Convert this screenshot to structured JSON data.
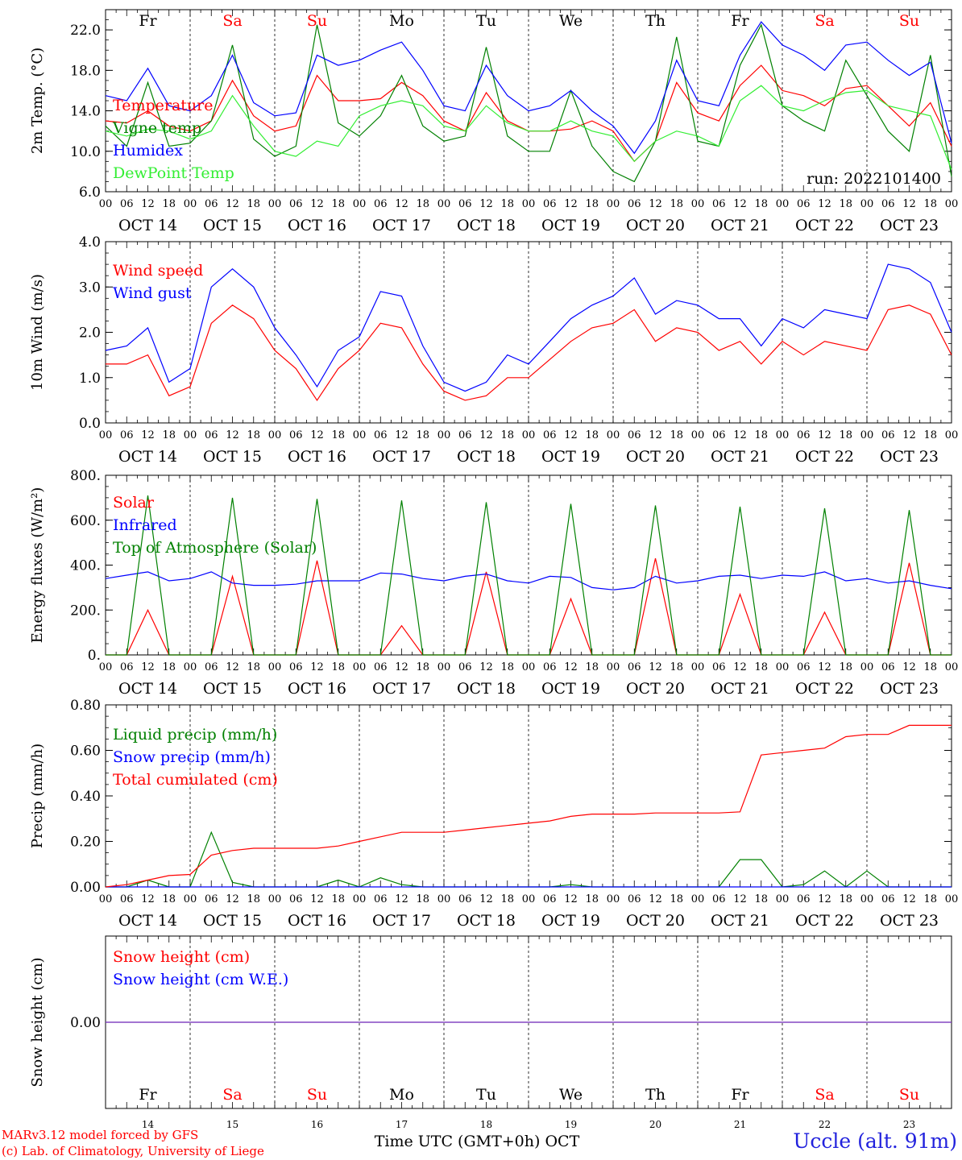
{
  "run_label": "run: 2022101400",
  "footer": {
    "model": "MARv3.12 model forced by GFS",
    "credit": "(c) Lab. of Climatology, University of Liege",
    "station": "Uccle (alt. 91m)",
    "xlabel": "Time UTC (GMT+0h)",
    "month": "OCT"
  },
  "days": [
    {
      "abbr": "Fr",
      "date": "OCT 14",
      "num": "14",
      "weekend": false
    },
    {
      "abbr": "Sa",
      "date": "OCT 15",
      "num": "15",
      "weekend": true
    },
    {
      "abbr": "Su",
      "date": "OCT 16",
      "num": "16",
      "weekend": true
    },
    {
      "abbr": "Mo",
      "date": "OCT 17",
      "num": "17",
      "weekend": false
    },
    {
      "abbr": "Tu",
      "date": "OCT 18",
      "num": "18",
      "weekend": false
    },
    {
      "abbr": "We",
      "date": "OCT 19",
      "num": "19",
      "weekend": false
    },
    {
      "abbr": "Th",
      "date": "OCT 20",
      "num": "20",
      "weekend": false
    },
    {
      "abbr": "Fr",
      "date": "OCT 21",
      "num": "21",
      "weekend": false
    },
    {
      "abbr": "Sa",
      "date": "OCT 22",
      "num": "22",
      "weekend": true
    },
    {
      "abbr": "Su",
      "date": "OCT 23",
      "num": "23",
      "weekend": true
    }
  ],
  "hour_ticks": [
    "00",
    "06",
    "12",
    "18"
  ],
  "colors": {
    "red": "#ff0000",
    "green": "#008000",
    "blue": "#0000ff",
    "lightgreen": "#33ee33",
    "purple": "#7f3fbf",
    "weekend": "#ff0000",
    "weekday": "#000000"
  },
  "chart_data": [
    {
      "id": "temp",
      "type": "line",
      "ylabel": "2m Temp. (°C)",
      "ylim": [
        6,
        24
      ],
      "yticks": [
        "6.0",
        "10.0",
        "14.0",
        "18.0",
        "22.0"
      ],
      "ytick_values": [
        6,
        10,
        14,
        18,
        22
      ],
      "x": [
        0,
        6,
        12,
        18,
        24,
        30,
        36,
        42,
        48,
        54,
        60,
        66,
        72,
        78,
        84,
        90,
        96,
        102,
        108,
        114,
        120,
        126,
        132,
        138,
        144,
        150,
        156,
        162,
        168,
        174,
        180,
        186,
        192,
        198,
        204,
        210,
        216,
        222,
        228,
        234,
        240
      ],
      "series": [
        {
          "name": "Temperature",
          "color": "red",
          "values": [
            13,
            12.8,
            14,
            12.5,
            12,
            13,
            17,
            13.5,
            12,
            12.5,
            17.5,
            15,
            15,
            15.2,
            16.8,
            15.5,
            13,
            12,
            15.8,
            13,
            12,
            12,
            12.2,
            13,
            12,
            9,
            11,
            16.8,
            13.8,
            13,
            16.5,
            18.5,
            16,
            15.5,
            14.5,
            16.2,
            16.5,
            14.5,
            12.5,
            14.8,
            10.5
          ]
        },
        {
          "name": "Vigne temp",
          "color": "green",
          "values": [
            12.5,
            10.5,
            16.8,
            10.5,
            10.8,
            13,
            20.5,
            11.2,
            9.5,
            10.5,
            22.5,
            12.8,
            11.5,
            13.5,
            17.5,
            12.5,
            11,
            11.5,
            20.3,
            11.5,
            10,
            10,
            16,
            10.5,
            8,
            7,
            11,
            21.3,
            11,
            10.5,
            18.5,
            22.5,
            14.5,
            13,
            12,
            19,
            15.5,
            12,
            10,
            19.5,
            7.5
          ]
        },
        {
          "name": "Humidex",
          "color": "blue",
          "values": [
            15.5,
            15,
            18.2,
            14.5,
            14,
            15.5,
            19.5,
            14.8,
            13.5,
            13.8,
            19.5,
            18.5,
            19,
            20,
            20.8,
            18,
            14.5,
            14,
            18.5,
            15.5,
            14,
            14.5,
            16,
            14,
            12.5,
            9.8,
            13,
            19,
            15,
            14.5,
            19.5,
            22.8,
            20.5,
            19.5,
            18,
            20.5,
            20.8,
            19,
            17.5,
            18.8,
            10.8
          ]
        },
        {
          "name": "DewPoint Temp",
          "color": "lightgreen",
          "values": [
            12,
            11.5,
            12.2,
            12,
            11.2,
            12,
            15.5,
            12.5,
            10,
            9.5,
            11,
            10.5,
            13.5,
            14.5,
            15,
            14.5,
            12.5,
            12,
            14.5,
            12.8,
            12,
            12,
            13,
            12,
            11.5,
            9,
            11,
            12,
            11.5,
            10.5,
            15,
            16.5,
            14.5,
            14,
            15,
            15.8,
            16,
            14.5,
            14,
            13.5,
            8.2
          ]
        }
      ]
    },
    {
      "id": "wind",
      "type": "line",
      "ylabel": "10m Wind (m/s)",
      "ylim": [
        0,
        4
      ],
      "yticks": [
        "0.0",
        "1.0",
        "2.0",
        "3.0",
        "4.0"
      ],
      "ytick_values": [
        0,
        1,
        2,
        3,
        4
      ],
      "x": [
        0,
        6,
        12,
        18,
        24,
        30,
        36,
        42,
        48,
        54,
        60,
        66,
        72,
        78,
        84,
        90,
        96,
        102,
        108,
        114,
        120,
        126,
        132,
        138,
        144,
        150,
        156,
        162,
        168,
        174,
        180,
        186,
        192,
        198,
        204,
        210,
        216,
        222,
        228,
        234,
        240
      ],
      "series": [
        {
          "name": "Wind speed",
          "color": "red",
          "values": [
            1.3,
            1.3,
            1.5,
            0.6,
            0.8,
            2.2,
            2.6,
            2.3,
            1.6,
            1.2,
            0.5,
            1.2,
            1.6,
            2.2,
            2.1,
            1.3,
            0.7,
            0.5,
            0.6,
            1,
            1,
            1.4,
            1.8,
            2.1,
            2.2,
            2.5,
            1.8,
            2.1,
            2,
            1.6,
            1.8,
            1.3,
            1.8,
            1.5,
            1.8,
            1.7,
            1.6,
            2.5,
            2.6,
            2.4,
            1.5
          ]
        },
        {
          "name": "Wind gust",
          "color": "blue",
          "values": [
            1.6,
            1.7,
            2.1,
            0.9,
            1.2,
            3,
            3.4,
            3,
            2.1,
            1.5,
            0.8,
            1.6,
            1.9,
            2.9,
            2.8,
            1.7,
            0.9,
            0.7,
            0.9,
            1.5,
            1.3,
            1.8,
            2.3,
            2.6,
            2.8,
            3.2,
            2.4,
            2.7,
            2.6,
            2.3,
            2.3,
            1.7,
            2.3,
            2.1,
            2.5,
            2.4,
            2.3,
            3.5,
            3.4,
            3.1,
            2
          ]
        }
      ]
    },
    {
      "id": "energy",
      "type": "line",
      "ylabel": "Energy fluxes (W/m²)",
      "ylim": [
        0,
        800
      ],
      "yticks": [
        "0.",
        "200.",
        "400.",
        "600.",
        "800."
      ],
      "ytick_values": [
        0,
        200,
        400,
        600,
        800
      ],
      "x": [
        0,
        6,
        12,
        18,
        24,
        30,
        36,
        42,
        48,
        54,
        60,
        66,
        72,
        78,
        84,
        90,
        96,
        102,
        108,
        114,
        120,
        126,
        132,
        138,
        144,
        150,
        156,
        162,
        168,
        174,
        180,
        186,
        192,
        198,
        204,
        210,
        216,
        222,
        228,
        234,
        240
      ],
      "series": [
        {
          "name": "Solar",
          "color": "red",
          "values": [
            0,
            0,
            200,
            0,
            0,
            0,
            350,
            0,
            0,
            0,
            420,
            0,
            0,
            0,
            130,
            0,
            0,
            0,
            370,
            0,
            0,
            0,
            250,
            0,
            0,
            0,
            430,
            0,
            0,
            0,
            270,
            0,
            0,
            0,
            190,
            0,
            0,
            0,
            410,
            0,
            0
          ]
        },
        {
          "name": "Infrared",
          "color": "blue",
          "values": [
            340,
            355,
            370,
            330,
            340,
            370,
            320,
            310,
            310,
            315,
            330,
            330,
            330,
            365,
            360,
            340,
            330,
            350,
            360,
            330,
            320,
            350,
            345,
            300,
            290,
            300,
            350,
            320,
            330,
            350,
            355,
            340,
            355,
            350,
            370,
            330,
            340,
            320,
            330,
            310,
            295
          ]
        },
        {
          "name": "Top of Atmosphere (Solar)",
          "color": "green",
          "values": [
            0,
            0,
            710,
            0,
            0,
            0,
            700,
            0,
            0,
            0,
            695,
            0,
            0,
            0,
            688,
            0,
            0,
            0,
            680,
            0,
            0,
            0,
            673,
            0,
            0,
            0,
            666,
            0,
            0,
            0,
            660,
            0,
            0,
            0,
            653,
            0,
            0,
            0,
            645,
            0,
            0
          ]
        }
      ]
    },
    {
      "id": "precip",
      "type": "line",
      "ylabel": "Precip (mm/h)",
      "ylim": [
        0,
        0.8
      ],
      "yticks": [
        "0.00",
        "0.20",
        "0.40",
        "0.60",
        "0.80"
      ],
      "ytick_values": [
        0,
        0.2,
        0.4,
        0.6,
        0.8
      ],
      "x": [
        0,
        6,
        12,
        18,
        24,
        30,
        36,
        42,
        48,
        54,
        60,
        66,
        72,
        78,
        84,
        90,
        96,
        102,
        108,
        114,
        120,
        126,
        132,
        138,
        144,
        150,
        156,
        162,
        168,
        174,
        180,
        186,
        192,
        198,
        204,
        210,
        216,
        222,
        228,
        234,
        240
      ],
      "series": [
        {
          "name": "Liquid precip (mm/h)",
          "color": "green",
          "values": [
            0,
            0,
            0.03,
            0,
            0,
            0.24,
            0.02,
            0,
            0,
            0,
            0,
            0.03,
            0,
            0.04,
            0.01,
            0,
            0,
            0,
            0,
            0,
            0,
            0,
            0.01,
            0,
            0,
            0,
            0,
            0,
            0,
            0,
            0.12,
            0.12,
            0,
            0.01,
            0.07,
            0,
            0.07,
            0,
            0,
            0,
            0
          ]
        },
        {
          "name": "Snow precip (mm/h)",
          "color": "blue",
          "values": [
            0,
            0,
            0,
            0,
            0,
            0,
            0,
            0,
            0,
            0,
            0,
            0,
            0,
            0,
            0,
            0,
            0,
            0,
            0,
            0,
            0,
            0,
            0,
            0,
            0,
            0,
            0,
            0,
            0,
            0,
            0,
            0,
            0,
            0,
            0,
            0,
            0,
            0,
            0,
            0,
            0
          ]
        },
        {
          "name": "Total cumulated (cm)",
          "color": "red",
          "values": [
            0,
            0.01,
            0.03,
            0.05,
            0.055,
            0.14,
            0.16,
            0.17,
            0.17,
            0.17,
            0.17,
            0.18,
            0.2,
            0.22,
            0.24,
            0.24,
            0.24,
            0.25,
            0.26,
            0.27,
            0.28,
            0.29,
            0.31,
            0.32,
            0.32,
            0.32,
            0.325,
            0.325,
            0.325,
            0.325,
            0.33,
            0.58,
            0.59,
            0.6,
            0.61,
            0.66,
            0.67,
            0.67,
            0.71,
            0.71,
            0.71
          ]
        }
      ]
    },
    {
      "id": "snow",
      "type": "line",
      "ylabel": "Snow height (cm)",
      "ylim": [
        -1,
        1
      ],
      "yticks": [
        "0.00"
      ],
      "ytick_values": [
        0
      ],
      "x": [
        0,
        240
      ],
      "series": [
        {
          "name": "Snow height (cm)",
          "color": "red",
          "values": [
            0,
            0
          ]
        },
        {
          "name": "Snow height (cm W.E.)",
          "color": "blue",
          "values": [
            0,
            0
          ]
        }
      ]
    }
  ]
}
